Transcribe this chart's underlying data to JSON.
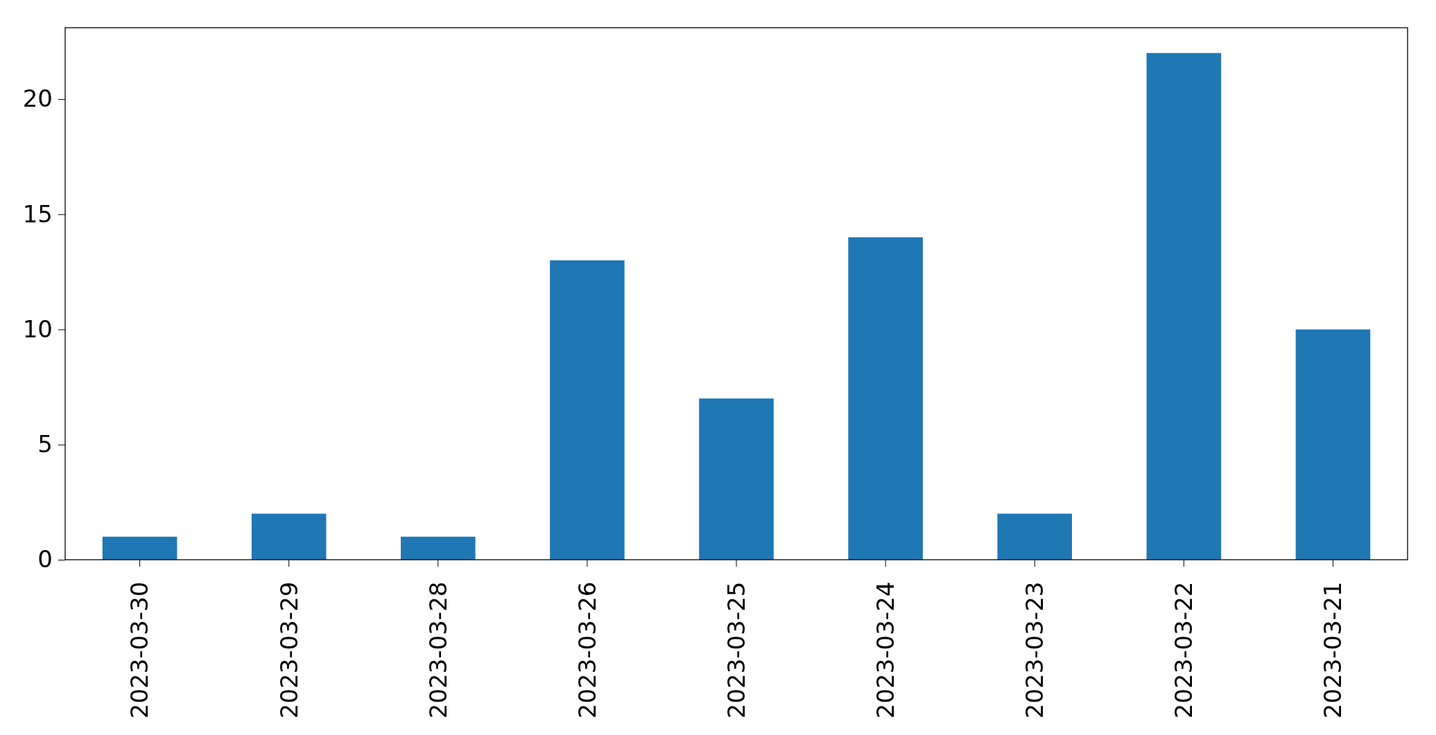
{
  "chart_data": {
    "type": "bar",
    "categories": [
      "2023-03-30",
      "2023-03-29",
      "2023-03-28",
      "2023-03-26",
      "2023-03-25",
      "2023-03-24",
      "2023-03-23",
      "2023-03-22",
      "2023-03-21"
    ],
    "values": [
      1,
      2,
      1,
      13,
      7,
      14,
      2,
      22,
      10
    ],
    "color": "#1f77b4",
    "ylim": [
      0,
      23.1
    ],
    "yticks": [
      0,
      5,
      10,
      15,
      20
    ],
    "grid": false
  }
}
